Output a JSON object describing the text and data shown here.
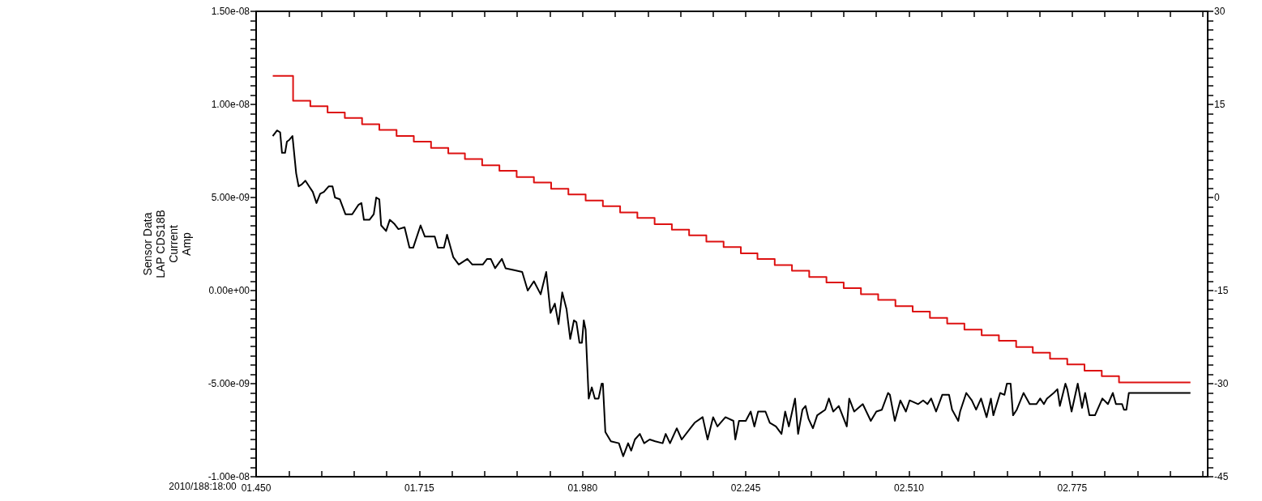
{
  "chart_data": {
    "type": "line",
    "xlabel": "2010/188:18:00",
    "ylabel": "Sensor Data\nLAP CDS18B\nCurrent\nAmp",
    "grid": false,
    "marker": "none",
    "xlim": [
      1.45,
      2.995
    ],
    "xticks": [
      {
        "value": 1.45,
        "label": "01.450"
      },
      {
        "value": 1.503,
        "label": null
      },
      {
        "value": 1.556,
        "label": null
      },
      {
        "value": 1.609,
        "label": null
      },
      {
        "value": 1.662,
        "label": null
      },
      {
        "value": 1.715,
        "label": "01.715"
      },
      {
        "value": 1.768,
        "label": null
      },
      {
        "value": 1.821,
        "label": null
      },
      {
        "value": 1.874,
        "label": null
      },
      {
        "value": 1.927,
        "label": null
      },
      {
        "value": 1.98,
        "label": "01.980"
      },
      {
        "value": 2.033,
        "label": null
      },
      {
        "value": 2.086,
        "label": null
      },
      {
        "value": 2.139,
        "label": null
      },
      {
        "value": 2.192,
        "label": null
      },
      {
        "value": 2.245,
        "label": "02.245"
      },
      {
        "value": 2.298,
        "label": null
      },
      {
        "value": 2.351,
        "label": null
      },
      {
        "value": 2.404,
        "label": null
      },
      {
        "value": 2.457,
        "label": null
      },
      {
        "value": 2.51,
        "label": "02.510"
      },
      {
        "value": 2.563,
        "label": null
      },
      {
        "value": 2.616,
        "label": null
      },
      {
        "value": 2.669,
        "label": null
      },
      {
        "value": 2.722,
        "label": null
      },
      {
        "value": 2.775,
        "label": "02.775"
      },
      {
        "value": 2.828,
        "label": null
      },
      {
        "value": 2.881,
        "label": null
      },
      {
        "value": 2.934,
        "label": null
      },
      {
        "value": 2.987,
        "label": null
      }
    ],
    "ylim": [
      -1e-08,
      1.5e-08
    ],
    "yticks": [
      {
        "value": -1e-08,
        "label": "-1.00e-08"
      },
      {
        "value": -9.5e-09,
        "label": null
      },
      {
        "value": -9e-09,
        "label": null
      },
      {
        "value": -8.5e-09,
        "label": null
      },
      {
        "value": -8e-09,
        "label": null
      },
      {
        "value": -7.5e-09,
        "label": null
      },
      {
        "value": -7e-09,
        "label": null
      },
      {
        "value": -6.5e-09,
        "label": null
      },
      {
        "value": -6e-09,
        "label": null
      },
      {
        "value": -5.5e-09,
        "label": null
      },
      {
        "value": -5e-09,
        "label": "-5.00e-09"
      },
      {
        "value": -4.5e-09,
        "label": null
      },
      {
        "value": -4e-09,
        "label": null
      },
      {
        "value": -3.5e-09,
        "label": null
      },
      {
        "value": -3e-09,
        "label": null
      },
      {
        "value": -2.5e-09,
        "label": null
      },
      {
        "value": -2e-09,
        "label": null
      },
      {
        "value": -1.5e-09,
        "label": null
      },
      {
        "value": -1e-09,
        "label": null
      },
      {
        "value": -5e-10,
        "label": null
      },
      {
        "value": 0,
        "label": "0.00e+00"
      },
      {
        "value": 5e-10,
        "label": null
      },
      {
        "value": 1e-09,
        "label": null
      },
      {
        "value": 1.5e-09,
        "label": null
      },
      {
        "value": 2e-09,
        "label": null
      },
      {
        "value": 2.5e-09,
        "label": null
      },
      {
        "value": 3e-09,
        "label": null
      },
      {
        "value": 3.5e-09,
        "label": null
      },
      {
        "value": 4e-09,
        "label": null
      },
      {
        "value": 4.5e-09,
        "label": null
      },
      {
        "value": 5e-09,
        "label": "5.00e-09"
      },
      {
        "value": 5.5e-09,
        "label": null
      },
      {
        "value": 6e-09,
        "label": null
      },
      {
        "value": 6.5e-09,
        "label": null
      },
      {
        "value": 7e-09,
        "label": null
      },
      {
        "value": 7.5e-09,
        "label": null
      },
      {
        "value": 8e-09,
        "label": null
      },
      {
        "value": 8.5e-09,
        "label": null
      },
      {
        "value": 9e-09,
        "label": null
      },
      {
        "value": 9.5e-09,
        "label": null
      },
      {
        "value": 1e-08,
        "label": "1.00e-08"
      },
      {
        "value": 1.05e-08,
        "label": null
      },
      {
        "value": 1.1e-08,
        "label": null
      },
      {
        "value": 1.15e-08,
        "label": null
      },
      {
        "value": 1.2e-08,
        "label": null
      },
      {
        "value": 1.25e-08,
        "label": null
      },
      {
        "value": 1.3e-08,
        "label": null
      },
      {
        "value": 1.35e-08,
        "label": null
      },
      {
        "value": 1.4e-08,
        "label": null
      },
      {
        "value": 1.45e-08,
        "label": null
      },
      {
        "value": 1.5e-08,
        "label": "1.50e-08"
      }
    ],
    "y2lim": [
      -45,
      30
    ],
    "y2ticks": [
      -45,
      {
        "value": -43.5,
        "label": null
      },
      {
        "value": -42,
        "label": null
      },
      {
        "value": -40.5,
        "label": null
      },
      {
        "value": -39,
        "label": null
      },
      {
        "value": -37.5,
        "label": null
      },
      {
        "value": -36,
        "label": null
      },
      {
        "value": -34.5,
        "label": null
      },
      {
        "value": -33,
        "label": null
      },
      {
        "value": -31.5,
        "label": null
      },
      -30,
      {
        "value": -28.5,
        "label": null
      },
      {
        "value": -27,
        "label": null
      },
      {
        "value": -25.5,
        "label": null
      },
      {
        "value": -24,
        "label": null
      },
      {
        "value": -22.5,
        "label": null
      },
      {
        "value": -21,
        "label": null
      },
      {
        "value": -19.5,
        "label": null
      },
      {
        "value": -18,
        "label": null
      },
      {
        "value": -16.5,
        "label": null
      },
      -15,
      {
        "value": -13.5,
        "label": null
      },
      {
        "value": -12,
        "label": null
      },
      {
        "value": -10.5,
        "label": null
      },
      {
        "value": -9,
        "label": null
      },
      {
        "value": -7.5,
        "label": null
      },
      {
        "value": -6,
        "label": null
      },
      {
        "value": -4.5,
        "label": null
      },
      {
        "value": -3,
        "label": null
      },
      {
        "value": -1.5,
        "label": null
      },
      0,
      {
        "value": 1.5,
        "label": null
      },
      {
        "value": 3,
        "label": null
      },
      {
        "value": 4.5,
        "label": null
      },
      {
        "value": 6,
        "label": null
      },
      {
        "value": 7.5,
        "label": null
      },
      {
        "value": 9,
        "label": null
      },
      {
        "value": 10.5,
        "label": null
      },
      {
        "value": 12,
        "label": null
      },
      {
        "value": 13.5,
        "label": null
      },
      15,
      {
        "value": 16.5,
        "label": null
      },
      {
        "value": 18,
        "label": null
      },
      {
        "value": 19.5,
        "label": null
      },
      {
        "value": 21,
        "label": null
      },
      {
        "value": 22.5,
        "label": null
      },
      {
        "value": 24,
        "label": null
      },
      {
        "value": 25.5,
        "label": null
      },
      {
        "value": 27,
        "label": null
      },
      {
        "value": 28.5,
        "label": null
      },
      30
    ],
    "series": [
      {
        "type": "step",
        "axis": "y2",
        "color": "#dd1111",
        "x": [
          1.477,
          1.51,
          1.538,
          1.566,
          1.594,
          1.622,
          1.65,
          1.678,
          1.706,
          1.734,
          1.762,
          1.789,
          1.817,
          1.845,
          1.873,
          1.901,
          1.929,
          1.957,
          1.985,
          2.013,
          2.041,
          2.069,
          2.097,
          2.125,
          2.153,
          2.181,
          2.209,
          2.237,
          2.264,
          2.292,
          2.32,
          2.348,
          2.376,
          2.404,
          2.432,
          2.46,
          2.488,
          2.516,
          2.544,
          2.572,
          2.6,
          2.628,
          2.656,
          2.684,
          2.711,
          2.739,
          2.767,
          2.795,
          2.823,
          2.851,
          2.967
        ],
        "values": [
          19.6,
          15.6,
          14.7,
          13.7,
          12.8,
          11.8,
          10.9,
          9.9,
          9.0,
          8.0,
          7.1,
          6.2,
          5.2,
          4.3,
          3.3,
          2.4,
          1.4,
          0.5,
          -0.5,
          -1.4,
          -2.4,
          -3.3,
          -4.3,
          -5.2,
          -6.1,
          -7.1,
          -8.0,
          -9.0,
          -9.9,
          -10.9,
          -11.8,
          -12.8,
          -13.7,
          -14.6,
          -15.6,
          -16.5,
          -17.5,
          -18.4,
          -19.4,
          -20.3,
          -21.3,
          -22.2,
          -23.1,
          -24.1,
          -25.0,
          -26.0,
          -26.9,
          -27.9,
          -28.8,
          -29.8,
          -29.8
        ]
      },
      {
        "type": "line",
        "color": "#000000",
        "x": [
          1.477,
          1.484,
          1.489,
          1.492,
          1.497,
          1.5,
          1.504,
          1.509,
          1.515,
          1.519,
          1.524,
          1.53,
          1.536,
          1.542,
          1.548,
          1.554,
          1.56,
          1.568,
          1.574,
          1.578,
          1.586,
          1.595,
          1.606,
          1.616,
          1.621,
          1.625,
          1.634,
          1.641,
          1.645,
          1.65,
          1.653,
          1.661,
          1.667,
          1.674,
          1.681,
          1.691,
          1.699,
          1.705,
          1.717,
          1.724,
          1.74,
          1.745,
          1.755,
          1.76,
          1.77,
          1.779,
          1.793,
          1.801,
          1.818,
          1.825,
          1.831,
          1.838,
          1.849,
          1.855,
          1.869,
          1.882,
          1.891,
          1.901,
          1.912,
          1.921,
          1.928,
          1.935,
          1.941,
          1.947,
          1.954,
          1.96,
          1.966,
          1.97,
          1.975,
          1.979,
          1.982,
          1.985,
          1.99,
          1.995,
          2.0,
          2.006,
          2.011,
          2.013,
          2.017,
          2.026,
          2.039,
          2.046,
          2.054,
          2.059,
          2.065,
          2.073,
          2.08,
          2.089,
          2.098,
          2.11,
          2.115,
          2.122,
          2.133,
          2.141,
          2.155,
          2.162,
          2.175,
          2.183,
          2.192,
          2.199,
          2.212,
          2.225,
          2.228,
          2.234,
          2.245,
          2.253,
          2.259,
          2.265,
          2.277,
          2.284,
          2.294,
          2.303,
          2.309,
          2.315,
          2.325,
          2.33,
          2.337,
          2.342,
          2.347,
          2.354,
          2.361,
          2.374,
          2.38,
          2.387,
          2.396,
          2.409,
          2.413,
          2.421,
          2.435,
          2.448,
          2.457,
          2.466,
          2.476,
          2.479,
          2.487,
          2.496,
          2.505,
          2.511,
          2.525,
          2.533,
          2.54,
          2.546,
          2.554,
          2.564,
          2.575,
          2.58,
          2.59,
          2.593,
          2.603,
          2.612,
          2.619,
          2.627,
          2.636,
          2.643,
          2.647,
          2.658,
          2.665,
          2.669,
          2.675,
          2.679,
          2.685,
          2.696,
          2.706,
          2.717,
          2.723,
          2.729,
          2.734,
          2.745,
          2.751,
          2.755,
          2.764,
          2.767,
          2.774,
          2.784,
          2.791,
          2.796,
          2.803,
          2.812,
          2.824,
          2.833,
          2.841,
          2.846,
          2.856,
          2.859,
          2.863,
          2.867,
          2.967
        ],
        "values": [
          8.3e-09,
          8.6e-09,
          8.5e-09,
          7.4e-09,
          7.4e-09,
          8e-09,
          8.1e-09,
          8.3e-09,
          6.3e-09,
          5.6e-09,
          5.7e-09,
          5.9e-09,
          5.6e-09,
          5.3e-09,
          4.7e-09,
          5.2e-09,
          5.3e-09,
          5.6e-09,
          5.6e-09,
          5e-09,
          4.9e-09,
          4.1e-09,
          4.1e-09,
          4.6e-09,
          4.7e-09,
          3.8e-09,
          3.8e-09,
          4.1e-09,
          5e-09,
          4.9e-09,
          3.5e-09,
          3.2e-09,
          3.8e-09,
          3.6e-09,
          3.3e-09,
          3.4e-09,
          2.3e-09,
          2.3e-09,
          3.5e-09,
          2.9e-09,
          2.9e-09,
          2.3e-09,
          2.3e-09,
          3e-09,
          1.8e-09,
          1.4e-09,
          1.7e-09,
          1.4e-09,
          1.4e-09,
          1.7e-09,
          1.7e-09,
          1.2e-09,
          1.7e-09,
          1.2e-09,
          1.1e-09,
          1e-09,
          0,
          5e-10,
          -2e-10,
          1e-09,
          -1.2e-09,
          -7e-10,
          -1.8e-09,
          -1e-10,
          -1e-09,
          -2.6e-09,
          -1.6e-09,
          -1.7e-09,
          -2.8e-09,
          -2.8e-09,
          -1.6e-09,
          -2.1e-09,
          -5.8e-09,
          -5.2e-09,
          -5.8e-09,
          -5.8e-09,
          -5e-09,
          -5e-09,
          -7.6e-09,
          -8.1e-09,
          -8.2e-09,
          -8.9e-09,
          -8.2e-09,
          -8.6e-09,
          -8e-09,
          -7.7e-09,
          -8.2e-09,
          -8e-09,
          -8.1e-09,
          -8.2e-09,
          -7.7e-09,
          -8.2e-09,
          -7.4e-09,
          -8e-09,
          -7.4e-09,
          -7.1e-09,
          -6.8e-09,
          -8e-09,
          -6.8e-09,
          -7.3e-09,
          -6.8e-09,
          -7e-09,
          -8e-09,
          -7e-09,
          -7e-09,
          -6.5e-09,
          -7.3e-09,
          -6.5e-09,
          -6.5e-09,
          -7.1e-09,
          -7.3e-09,
          -7.7e-09,
          -6.5e-09,
          -7.3e-09,
          -5.8e-09,
          -7.7e-09,
          -6.4e-09,
          -6.2e-09,
          -6.9e-09,
          -7.4e-09,
          -6.7e-09,
          -6.4e-09,
          -5.8e-09,
          -6.5e-09,
          -6.2e-09,
          -7.3e-09,
          -5.8e-09,
          -6.5e-09,
          -6.1e-09,
          -7e-09,
          -6.5e-09,
          -6.4e-09,
          -5.5e-09,
          -5.6e-09,
          -7e-09,
          -5.9e-09,
          -6.5e-09,
          -5.9e-09,
          -6.1e-09,
          -5.9e-09,
          -6.1e-09,
          -5.8e-09,
          -6.5e-09,
          -5.6e-09,
          -5.6e-09,
          -6.4e-09,
          -7e-09,
          -6.5e-09,
          -5.5e-09,
          -5.9e-09,
          -6.4e-09,
          -5.8e-09,
          -6.8e-09,
          -5.8e-09,
          -6.7e-09,
          -5.5e-09,
          -5.6e-09,
          -5e-09,
          -5e-09,
          -6.7e-09,
          -6.4e-09,
          -5.5e-09,
          -6.1e-09,
          -6.1e-09,
          -5.8e-09,
          -6.1e-09,
          -5.8e-09,
          -5.5e-09,
          -5.3e-09,
          -6.2e-09,
          -5e-09,
          -5.3e-09,
          -6.5e-09,
          -5e-09,
          -6.3e-09,
          -5.5e-09,
          -6.7e-09,
          -6.7e-09,
          -5.8e-09,
          -6.1e-09,
          -5.5e-09,
          -6.1e-09,
          -6.1e-09,
          -6.4e-09,
          -6.4e-09,
          -5.5e-09,
          -5.5e-09
        ]
      }
    ]
  }
}
